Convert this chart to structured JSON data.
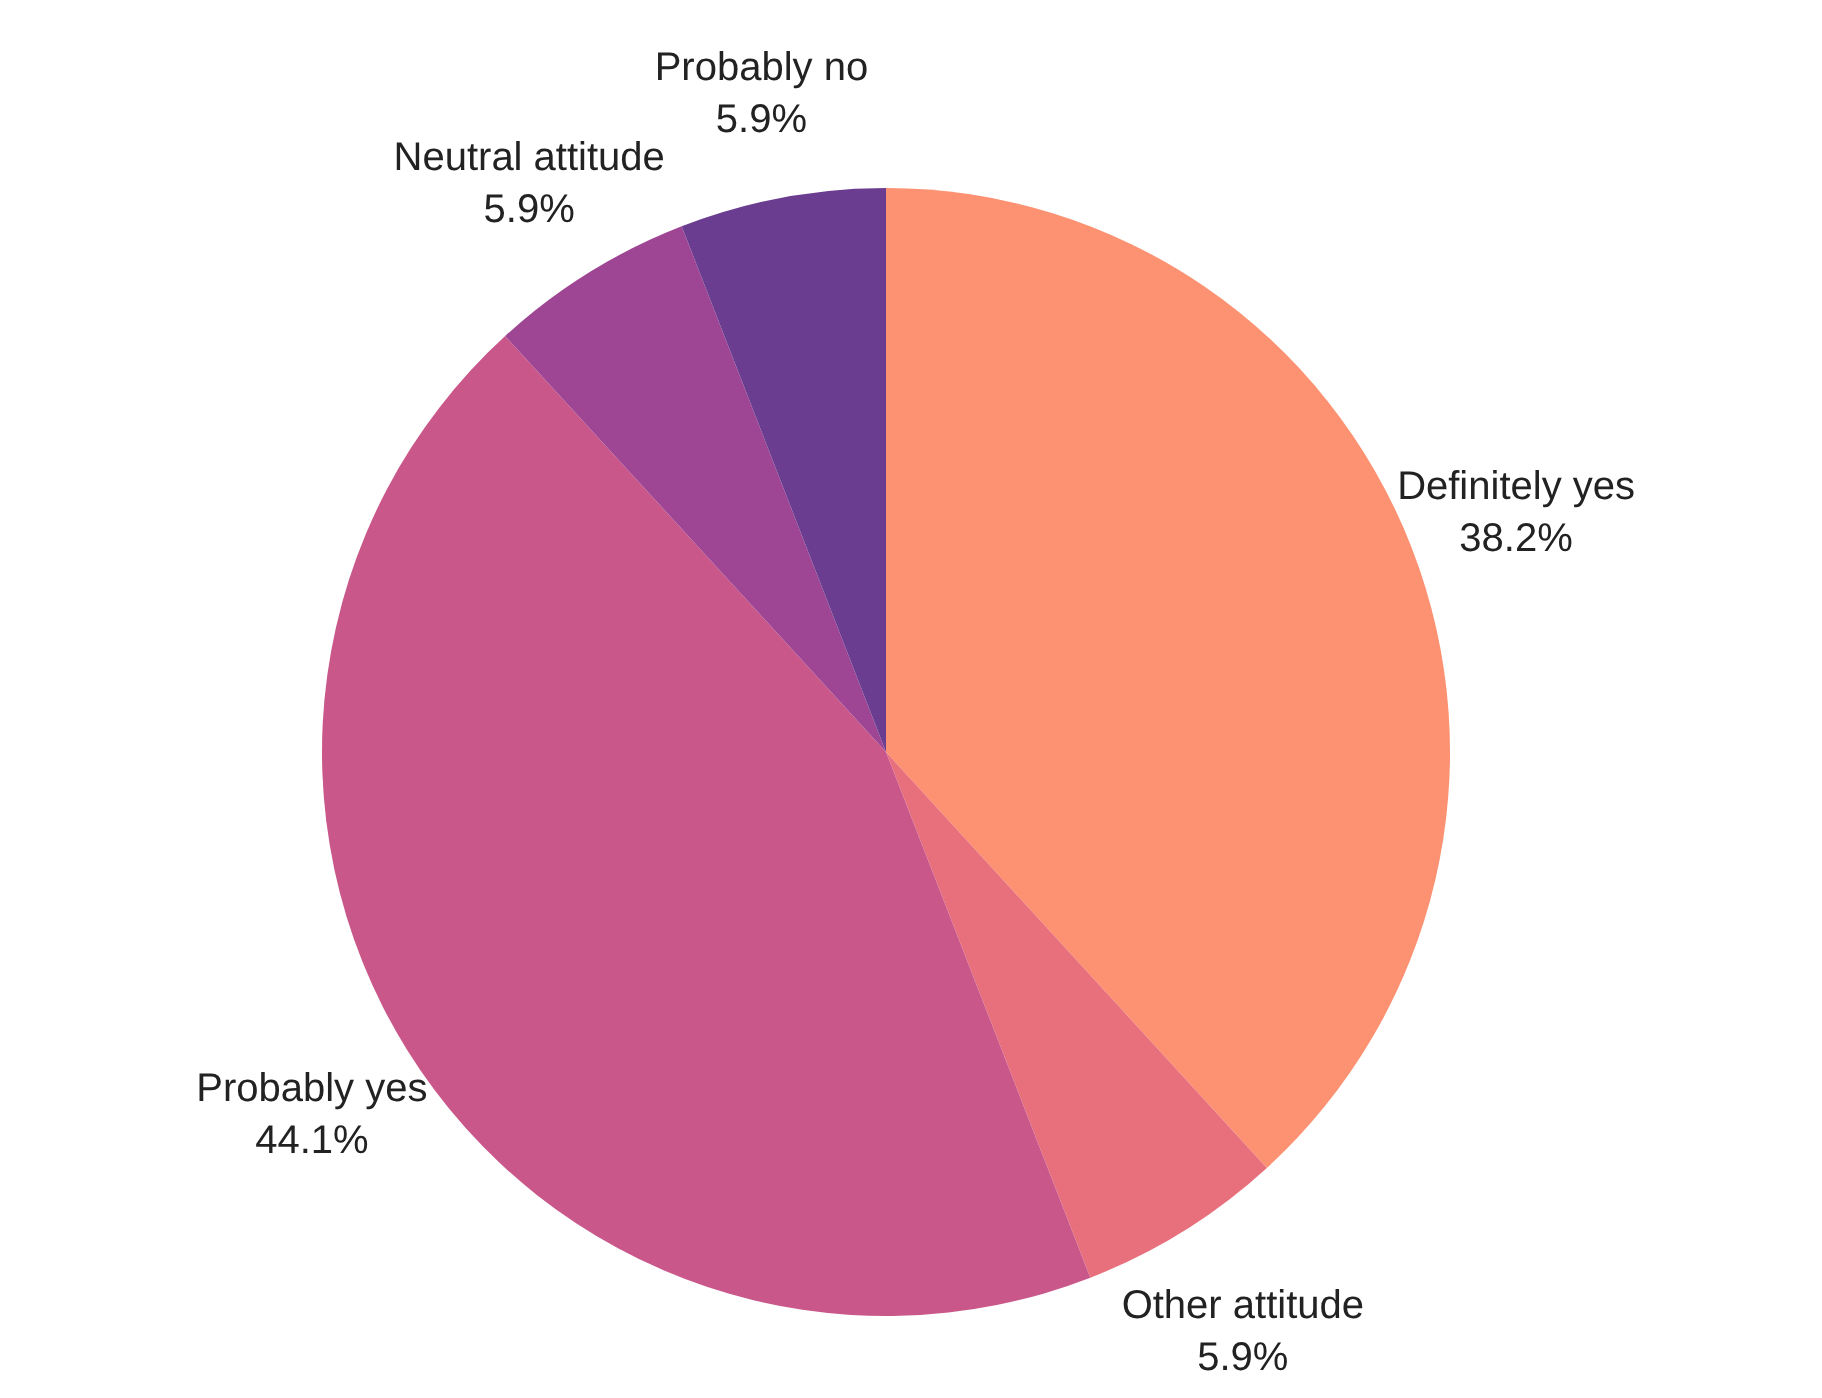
{
  "chart_data": {
    "type": "pie",
    "categories": [
      "Definitely yes",
      "Other attitude",
      "Probably yes",
      "Neutral attitude",
      "Probably no"
    ],
    "values": [
      38.2,
      5.9,
      44.1,
      5.9,
      5.9
    ],
    "colors": [
      "#fc9272",
      "#e8707d",
      "#c9578a",
      "#9e4593",
      "#6a3d91"
    ],
    "value_labels": [
      "38.2%",
      "5.9%",
      "44.1%",
      "5.9%",
      "5.9%"
    ],
    "legend": false
  }
}
